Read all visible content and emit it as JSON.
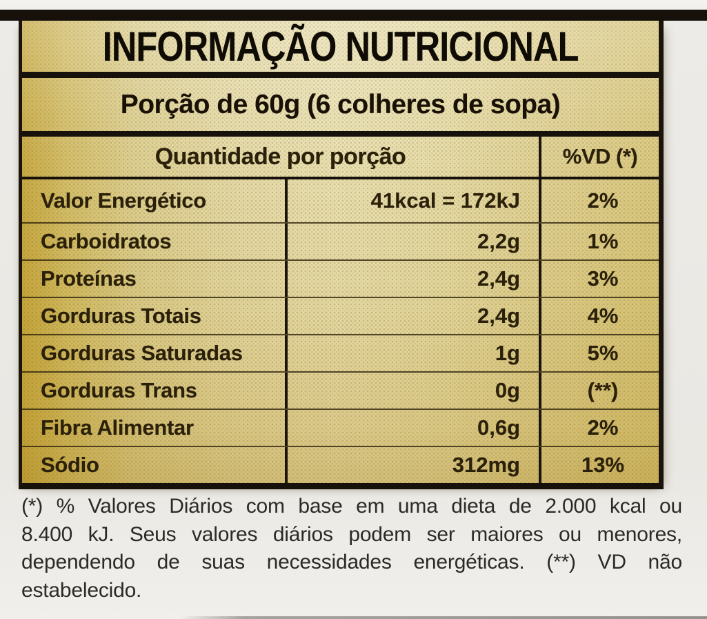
{
  "label": {
    "title": "INFORMAÇÃO NUTRICIONAL",
    "serving": "Porção de 60g (6 colheres de sopa)",
    "columns": {
      "quantity": "Quantidade por porção",
      "daily_value": "%VD (*)"
    },
    "rows": [
      {
        "name": "Valor Energético",
        "value": "41kcal = 172kJ",
        "dv": "2%"
      },
      {
        "name": "Carboidratos",
        "value": "2,2g",
        "dv": "1%"
      },
      {
        "name": "Proteínas",
        "value": "2,4g",
        "dv": "3%"
      },
      {
        "name": "Gorduras Totais",
        "value": "2,4g",
        "dv": "4%"
      },
      {
        "name": "Gorduras Saturadas",
        "value": "1g",
        "dv": "5%"
      },
      {
        "name": "Gorduras Trans",
        "value": "0g",
        "dv": "(**)"
      },
      {
        "name": "Fibra Alimentar",
        "value": "0,6g",
        "dv": "2%"
      },
      {
        "name": "Sódio",
        "value": "312mg",
        "dv": "13%"
      }
    ],
    "footnote_lines": [
      "(*) % Valores Diários com base em uma dieta de 2.000 kcal ou",
      "8.400 kJ. Seus valores diários podem ser maiores ou menores,",
      "dependendo de suas necessidades energéticas. (**) VD não",
      "estabelecido."
    ],
    "colors": {
      "border": "#16110a",
      "gold_left": "#c5a53a",
      "cream_center": "#eae2b6",
      "tan_right": "#d9c87e",
      "table_text": "#2b2009",
      "page_bg": "#eae8e3"
    }
  }
}
